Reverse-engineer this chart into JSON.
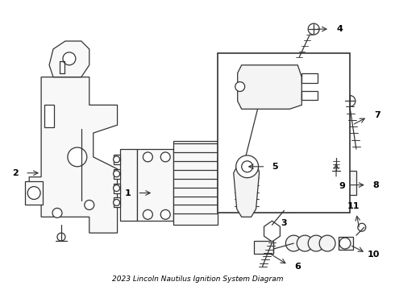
{
  "title": "2023 Lincoln Nautilus Ignition System Diagram",
  "background_color": "#ffffff",
  "line_color": "#333333",
  "label_color": "#000000",
  "fig_width": 4.9,
  "fig_height": 3.6,
  "dpi": 100
}
